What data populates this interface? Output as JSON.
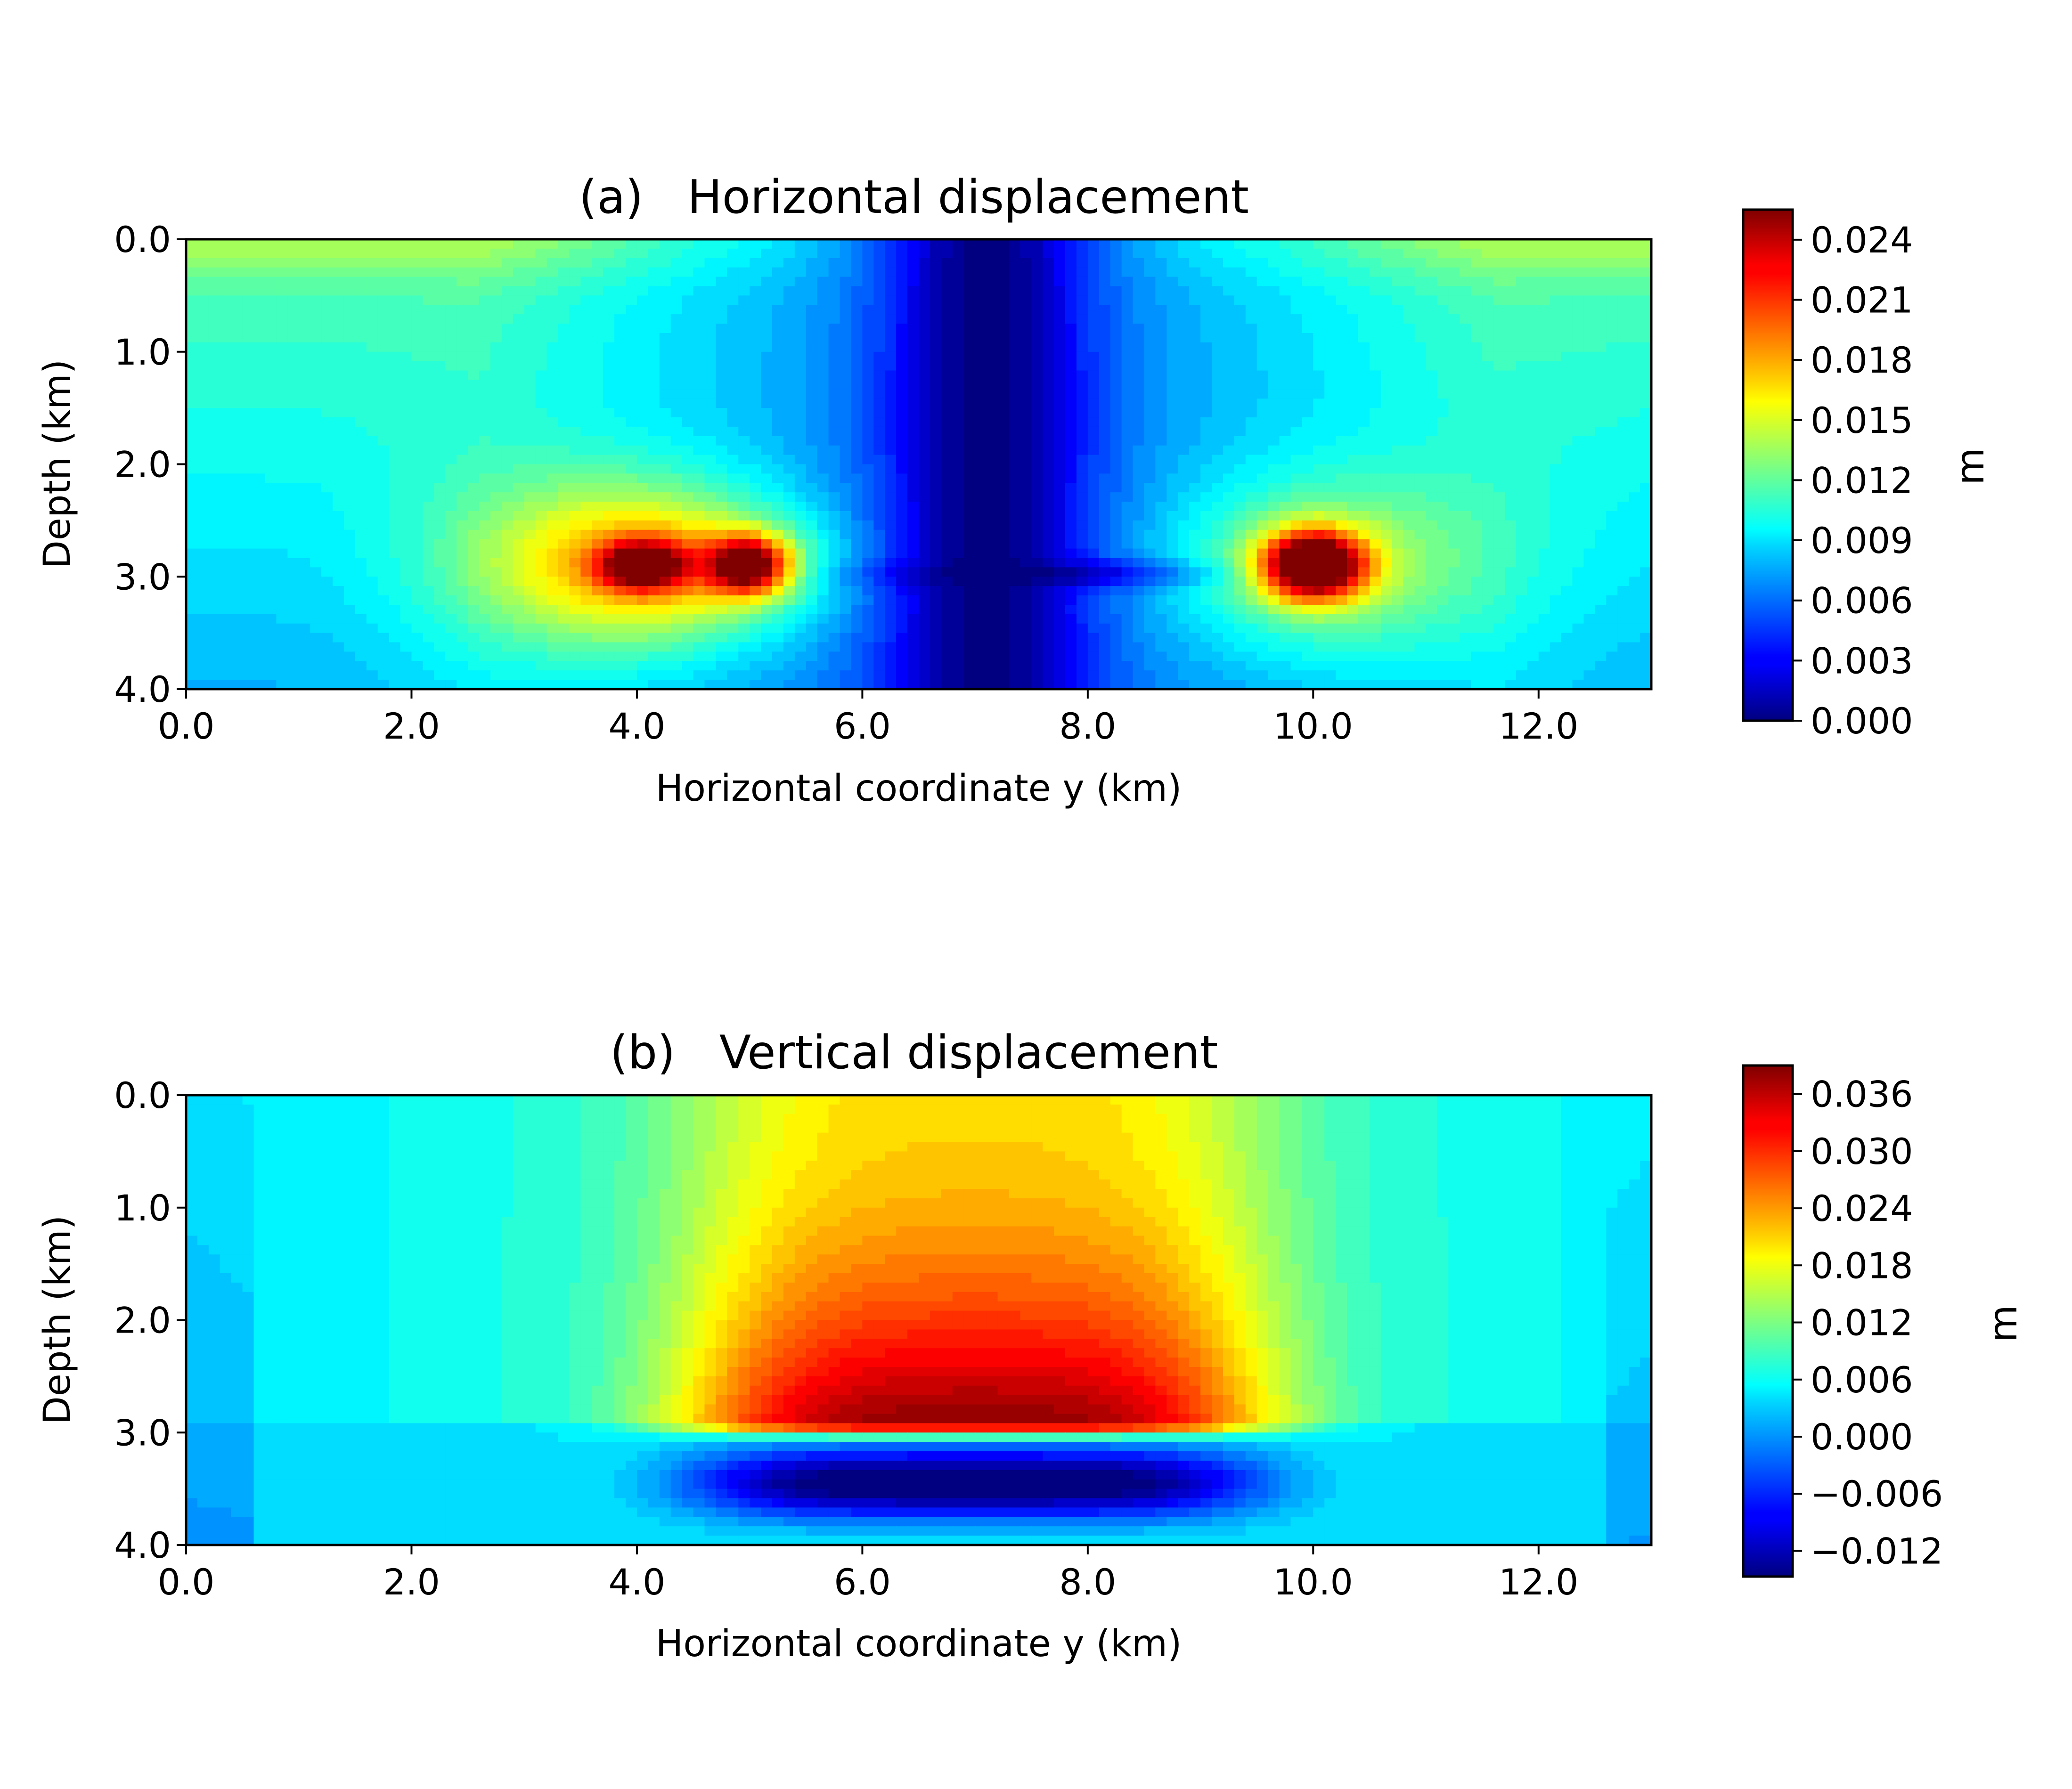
{
  "chart_data": [
    {
      "type": "heatmap",
      "panel": "(a)",
      "title": "Horizontal displacement",
      "xlabel": "Horizontal coordinate y (km)",
      "ylabel": "Depth (km)",
      "xlim": [
        0,
        13
      ],
      "ylim": [
        4,
        0
      ],
      "y_inverted": true,
      "xticks": [
        0,
        2,
        4,
        6,
        8,
        10,
        12
      ],
      "xtick_labels": [
        "0.0",
        "2.0",
        "4.0",
        "6.0",
        "8.0",
        "10.0",
        "12.0"
      ],
      "yticks": [
        0,
        1,
        2,
        3,
        4
      ],
      "ytick_labels": [
        "0.0",
        "1.0",
        "2.0",
        "3.0",
        "4.0"
      ],
      "colormap": "jet",
      "colorbar": {
        "label": "m",
        "min": 0.0,
        "max": 0.0255,
        "ticks": [
          0.0,
          0.003,
          0.006,
          0.009,
          0.012,
          0.015,
          0.018,
          0.021,
          0.024
        ],
        "tick_labels": [
          "0.000",
          "0.003",
          "0.006",
          "0.009",
          "0.012",
          "0.015",
          "0.018",
          "0.021",
          "0.024"
        ]
      },
      "features": {
        "source_depth_km": 2.9,
        "peak_maxima_km": [
          [
            4.0,
            2.9
          ],
          [
            5.0,
            2.9
          ],
          [
            10.0,
            2.9
          ]
        ],
        "minimum_column_y_km": 7.1
      }
    },
    {
      "type": "heatmap",
      "panel": "(b)",
      "title": "Vertical displacement",
      "xlabel": "Horizontal coordinate y (km)",
      "ylabel": "Depth (km)",
      "xlim": [
        0,
        13
      ],
      "ylim": [
        4,
        0
      ],
      "y_inverted": true,
      "xticks": [
        0,
        2,
        4,
        6,
        8,
        10,
        12
      ],
      "xtick_labels": [
        "0.0",
        "2.0",
        "4.0",
        "6.0",
        "8.0",
        "10.0",
        "12.0"
      ],
      "yticks": [
        0,
        1,
        2,
        3,
        4
      ],
      "ytick_labels": [
        "0.0",
        "1.0",
        "2.0",
        "3.0",
        "4.0"
      ],
      "colormap": "jet",
      "colorbar": {
        "label": "m",
        "min": -0.0147,
        "max": 0.039,
        "ticks": [
          -0.012,
          -0.006,
          0.0,
          0.006,
          0.012,
          0.018,
          0.024,
          0.03,
          0.036
        ],
        "tick_labels": [
          "−0.012",
          "−0.006",
          "0.000",
          "0.006",
          "0.012",
          "0.018",
          "0.024",
          "0.030",
          "0.036"
        ]
      },
      "features": {
        "interface_depth_km": 2.95,
        "uplift_max_km": [
          7.0,
          2.6
        ],
        "subsidence_min_km": [
          7.0,
          3.45
        ],
        "source_segment_y_km": [
          4.0,
          10.0
        ]
      }
    }
  ]
}
